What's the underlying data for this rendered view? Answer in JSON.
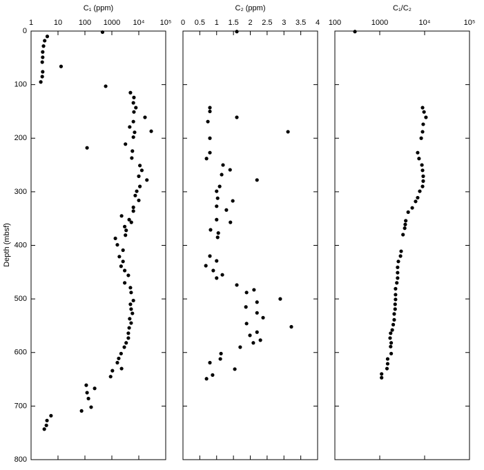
{
  "chart_data": [
    {
      "type": "scatter",
      "title": "C₁ (ppm)",
      "ylabel": "Depth (mbsf)",
      "xscale": "log",
      "color": "#000000",
      "xlim": [
        1,
        100000
      ],
      "xticks": [
        1,
        10,
        100,
        1000,
        {
          "value": 10000,
          "label": "10⁴"
        },
        {
          "value": 100000,
          "label": "10⁵"
        }
      ],
      "ylim": [
        0,
        800
      ],
      "y_inverted": true,
      "yticks": [
        0,
        100,
        200,
        300,
        400,
        500,
        600,
        700,
        800
      ],
      "x": [
        450,
        4,
        3.2,
        2.9,
        2.7,
        2.7,
        2.6,
        13,
        2.7,
        2.6,
        2.3,
        590,
        4900,
        6600,
        6300,
        7800,
        6600,
        17000,
        6300,
        4600,
        7000,
        29000,
        6300,
        3200,
        120,
        5800,
        5500,
        11000,
        13000,
        10000,
        20000,
        11000,
        8400,
        7400,
        10000,
        6300,
        6300,
        2300,
        4400,
        5300,
        3000,
        3400,
        3200,
        1350,
        1600,
        2600,
        1900,
        2600,
        2200,
        3000,
        4100,
        3000,
        4900,
        5200,
        6300,
        4900,
        5200,
        5800,
        4600,
        5200,
        4400,
        4100,
        4100,
        3400,
        2900,
        2200,
        1800,
        1600,
        2300,
        1050,
        900,
        112,
        230,
        120,
        135,
        170,
        75,
        5.5,
        3.9,
        3.7,
        3.1
      ],
      "y": [
        2,
        10,
        18,
        28,
        39,
        49,
        58,
        66,
        76,
        85,
        95,
        103,
        115,
        124,
        134,
        143,
        151,
        161,
        169,
        179,
        189,
        187,
        198,
        211,
        218,
        224,
        237,
        251,
        260,
        271,
        278,
        290,
        299,
        307,
        316,
        329,
        336,
        345,
        352,
        357,
        365,
        372,
        381,
        387,
        399,
        409,
        421,
        430,
        439,
        447,
        456,
        470,
        479,
        488,
        503,
        510,
        519,
        527,
        537,
        545,
        554,
        564,
        573,
        582,
        590,
        602,
        611,
        619,
        630,
        634,
        645,
        661,
        667,
        675,
        686,
        702,
        709,
        718,
        727,
        736,
        743
      ]
    },
    {
      "type": "scatter",
      "title": "C₂ (ppm)",
      "xscale": "linear",
      "color": "#000000",
      "xlim": [
        0,
        4
      ],
      "xticks": [
        0,
        0.5,
        1,
        1.5,
        2,
        2.5,
        3,
        3.5,
        4
      ],
      "ylim": [
        0,
        800
      ],
      "y_inverted": true,
      "x": [
        1.6,
        0.8,
        0.8,
        0.74,
        1.6,
        3.12,
        0.8,
        0.8,
        0.7,
        1.19,
        1.4,
        1.15,
        2.2,
        1.09,
        1.0,
        1.03,
        1.48,
        1.0,
        1.29,
        1.41,
        1.0,
        0.82,
        1.05,
        1.03,
        0.8,
        1.0,
        0.68,
        0.9,
        1.17,
        1.0,
        1.6,
        2.11,
        1.89,
        2.89,
        2.2,
        1.87,
        2.2,
        2.38,
        1.89,
        3.22,
        2.2,
        1.99,
        2.3,
        2.09,
        1.7,
        1.13,
        1.11,
        1.54,
        0.8,
        0.88,
        0.7
      ],
      "y": [
        1,
        143,
        150,
        169,
        161,
        188,
        200,
        227,
        238,
        250,
        259,
        268,
        278,
        290,
        299,
        312,
        317,
        327,
        334,
        357,
        352,
        371,
        377,
        385,
        420,
        429,
        438,
        447,
        455,
        461,
        474,
        483,
        488,
        500,
        506,
        515,
        526,
        535,
        546,
        552,
        562,
        568,
        577,
        582,
        590,
        602,
        612,
        631,
        619,
        642,
        649
      ]
    },
    {
      "type": "scatter",
      "title": "C₁/C₂",
      "xscale": "log",
      "color": "#000000",
      "xlim": [
        100,
        100000
      ],
      "xticks": [
        100,
        1000,
        {
          "value": 10000,
          "label": "10⁴"
        },
        {
          "value": 100000,
          "label": "10⁵"
        }
      ],
      "ylim": [
        0,
        800
      ],
      "y_inverted": true,
      "x": [
        280,
        9000,
        9700,
        10700,
        9300,
        9000,
        8400,
        7000,
        7500,
        8700,
        9000,
        9300,
        9300,
        9000,
        7800,
        7000,
        6300,
        5300,
        4300,
        3800,
        3700,
        3600,
        3300,
        3000,
        2900,
        2600,
        2500,
        2500,
        2500,
        2400,
        2250,
        2250,
        2250,
        2200,
        2200,
        2100,
        2100,
        2000,
        1900,
        1750,
        1700,
        1800,
        1750,
        1800,
        1500,
        1500,
        1450,
        1100,
        1100
      ],
      "y": [
        1,
        143,
        151,
        161,
        174,
        188,
        200,
        227,
        238,
        250,
        260,
        271,
        280,
        290,
        299,
        311,
        318,
        330,
        338,
        354,
        361,
        368,
        380,
        411,
        420,
        430,
        441,
        451,
        461,
        470,
        481,
        492,
        501,
        510,
        519,
        528,
        539,
        548,
        558,
        564,
        573,
        582,
        589,
        602,
        612,
        621,
        630,
        640,
        647
      ]
    }
  ]
}
